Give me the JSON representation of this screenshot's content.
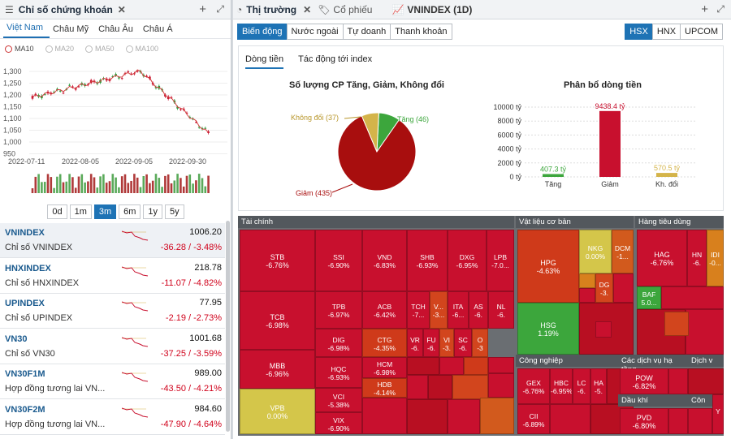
{
  "left_panel": {
    "title": "Chỉ số chứng khoán",
    "region_tabs": [
      "Việt Nam",
      "Châu Mỹ",
      "Châu Âu",
      "Châu Á"
    ],
    "ma": [
      "MA10",
      "MA20",
      "MA50",
      "MA100"
    ],
    "yticks": [
      "1,300",
      "1,250",
      "1,200",
      "1,150",
      "1,100",
      "1,050",
      "1,000",
      "950"
    ],
    "xticks": [
      "2022-07-11",
      "2022-08-05",
      "2022-09-05",
      "2022-09-30"
    ],
    "periods": [
      "0d",
      "1m",
      "3m",
      "6m",
      "1y",
      "5y"
    ],
    "indices": [
      {
        "code": "VNINDEX",
        "name": "Chỉ số VNINDEX",
        "price": "1006.20",
        "change": "-36.28 / -3.48%"
      },
      {
        "code": "HNXINDEX",
        "name": "Chỉ số HNXINDEX",
        "price": "218.78",
        "change": "-11.07 / -4.82%"
      },
      {
        "code": "UPINDEX",
        "name": "Chỉ số UPINDEX",
        "price": "77.95",
        "change": "-2.19 / -2.73%"
      },
      {
        "code": "VN30",
        "name": "Chỉ số VN30",
        "price": "1001.68",
        "change": "-37.25 / -3.59%"
      },
      {
        "code": "VN30F1M",
        "name": "Hợp đồng tương lai VN...",
        "price": "989.00",
        "change": "-43.50 / -4.21%"
      },
      {
        "code": "VN30F2M",
        "name": "Hợp đồng tương lai VN...",
        "price": "984.60",
        "change": "-47.90 / -4.64%"
      }
    ]
  },
  "right_panel": {
    "tabs": [
      "Thị trường",
      "Cổ phiếu",
      "VNINDEX (1D)"
    ],
    "view_buttons": [
      "Biến động",
      "Nước ngoài",
      "Tự doanh",
      "Thanh khoản"
    ],
    "exchanges": [
      "HSX",
      "HNX",
      "UPCOM"
    ],
    "sub_tabs": [
      "Dòng tiền",
      "Tác động tới index"
    ],
    "pie_title": "Số lượng CP Tăng, Giảm, Không đổi",
    "bar_title": "Phân bổ dòng tiền",
    "pie_labels": {
      "flat": "Không đổi (37)",
      "up": "Tăng (46)",
      "down": "Giảm (435)"
    },
    "sectors": [
      "Tài chính",
      "Vật liệu cơ bản",
      "Hàng tiêu dùng",
      "Công nghiệp",
      "Các dịch vụ hạ tầng",
      "Dịch v",
      "Dầu khí",
      "Côn"
    ]
  },
  "colors": {
    "red": "#c8102e",
    "green": "#3ca63c",
    "yellow": "#d4c64a",
    "blue": "#1e73b5"
  },
  "chart_data": [
    {
      "type": "pie",
      "title": "Số lượng CP Tăng, Giảm, Không đổi",
      "categories": [
        "Tăng",
        "Giảm",
        "Không đổi"
      ],
      "values": [
        46,
        435,
        37
      ],
      "colors": [
        "#3ca63c",
        "#a80e0e",
        "#d4b44a"
      ]
    },
    {
      "type": "bar",
      "title": "Phân bổ dòng tiền",
      "categories": [
        "Tăng",
        "Giảm",
        "Kh. đổi"
      ],
      "values": [
        407.3,
        9438.4,
        570.5
      ],
      "data_labels": [
        "407.3 tỷ",
        "9438.4 tỷ",
        "570.5 tỷ"
      ],
      "yticks": [
        "10000 tỷ",
        "8000 tỷ",
        "6000 tỷ",
        "4000 tỷ",
        "2000 tỷ",
        "0 tỷ"
      ],
      "ylim": [
        0,
        10000
      ],
      "colors": [
        "#3ca63c",
        "#c8102e",
        "#d4b44a"
      ]
    }
  ],
  "treemap": [
    {
      "t": "STB",
      "v": "-6.76%",
      "c": "#c8102e"
    },
    {
      "t": "SSI",
      "v": "-6.90%",
      "c": "#c8102e"
    },
    {
      "t": "VND",
      "v": "-6.83%",
      "c": "#c8102e"
    },
    {
      "t": "SHB",
      "v": "-6.93%",
      "c": "#c8102e"
    },
    {
      "t": "DXG",
      "v": "-6.95%",
      "c": "#c8102e"
    },
    {
      "t": "LPB",
      "v": "-7.0...",
      "c": "#c8102e"
    },
    {
      "t": "TCB",
      "v": "-6.98%",
      "c": "#c8102e"
    },
    {
      "t": "TPB",
      "v": "-6.97%",
      "c": "#c8102e"
    },
    {
      "t": "ACB",
      "v": "-6.42%",
      "c": "#c8102e"
    },
    {
      "t": "TCH",
      "v": "-7...",
      "c": "#c8102e"
    },
    {
      "t": "V...",
      "v": "-3...",
      "c": "#d2451d"
    },
    {
      "t": "ITA",
      "v": "-6...",
      "c": "#c8102e"
    },
    {
      "t": "AS",
      "v": "-6.",
      "c": "#c8102e"
    },
    {
      "t": "NL",
      "v": "-6.",
      "c": "#c8102e"
    },
    {
      "t": "DIG",
      "v": "-6.98%",
      "c": "#c8102e"
    },
    {
      "t": "CTG",
      "v": "-4.35%",
      "c": "#cf3a1a"
    },
    {
      "t": "VR",
      "v": "-6.",
      "c": "#c8102e"
    },
    {
      "t": "FU",
      "v": "-6.",
      "c": "#c8102e"
    },
    {
      "t": "VI",
      "v": "-3.",
      "c": "#d2451d"
    },
    {
      "t": "SC",
      "v": "-6.",
      "c": "#c8102e"
    },
    {
      "t": "O",
      "v": "-3",
      "c": "#d2451d"
    },
    {
      "t": "MBB",
      "v": "-6.96%",
      "c": "#c8102e"
    },
    {
      "t": "HQC",
      "v": "-6.93%",
      "c": "#c8102e"
    },
    {
      "t": "HCM",
      "v": "-6.98%",
      "c": "#c8102e"
    },
    {
      "t": "HDB",
      "v": "-4.14%",
      "c": "#cf3a1a"
    },
    {
      "t": "VPB",
      "v": "0.00%",
      "c": "#d4c64a"
    },
    {
      "t": "VCI",
      "v": "-5.38%",
      "c": "#c8102e"
    },
    {
      "t": "VIX",
      "v": "-6.90%",
      "c": "#c8102e"
    },
    {
      "t": "HPG",
      "v": "-4.63%",
      "c": "#cf3a1a"
    },
    {
      "t": "NKG",
      "v": "0.00%",
      "c": "#d4c64a"
    },
    {
      "t": "DCM",
      "v": "-1...",
      "c": "#d25a1d"
    },
    {
      "t": "DG",
      "v": "-3.",
      "c": "#d2451d"
    },
    {
      "t": "HSG",
      "v": "1.19%",
      "c": "#3ca63c"
    },
    {
      "t": "HAG",
      "v": "-6.76%",
      "c": "#c8102e"
    },
    {
      "t": "HN",
      "v": "-6.",
      "c": "#c8102e"
    },
    {
      "t": "IDI",
      "v": "-0...",
      "c": "#d8801d"
    },
    {
      "t": "BAF",
      "v": "5.0...",
      "c": "#3ca63c"
    },
    {
      "t": "GEX",
      "v": "-6.76%",
      "c": "#c8102e"
    },
    {
      "t": "HBC",
      "v": "-6.95%",
      "c": "#c8102e"
    },
    {
      "t": "LC",
      "v": "-6.",
      "c": "#c8102e"
    },
    {
      "t": "HA",
      "v": "-5.",
      "c": "#c8102e"
    },
    {
      "t": "CII",
      "v": "-6.89%",
      "c": "#c8102e"
    },
    {
      "t": "POW",
      "v": "-6.82%",
      "c": "#c8102e"
    },
    {
      "t": "PVD",
      "v": "-6.80%",
      "c": "#c8102e"
    },
    {
      "t": "Y",
      "v": "",
      "c": "#c8102e"
    }
  ]
}
